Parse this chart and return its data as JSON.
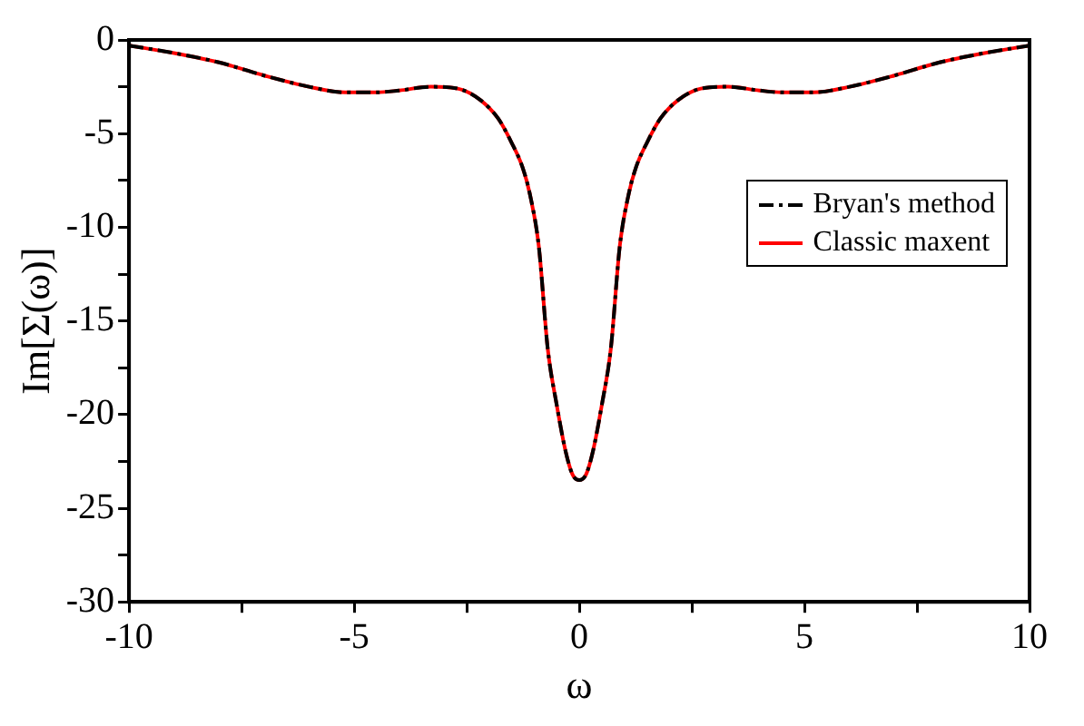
{
  "chart_data": {
    "type": "line",
    "xlabel": "ω",
    "ylabel": "Im[Σ(ω)]",
    "x": [
      -10,
      -9,
      -8,
      -7,
      -6,
      -5.2,
      -4.5,
      -4,
      -3.3,
      -2.7,
      -2.2,
      -1.8,
      -1.5,
      -1.26,
      -1.1,
      -0.9,
      -0.7,
      -0.5,
      -0.3,
      -0.15,
      0,
      0.15,
      0.3,
      0.5,
      0.7,
      0.9,
      1.1,
      1.26,
      1.5,
      1.8,
      2.2,
      2.7,
      3.3,
      4,
      4.5,
      5.2,
      6,
      7,
      8,
      9,
      10
    ],
    "series": [
      {
        "name": "Bryan's method",
        "color": "#000000",
        "line_style": "dashed",
        "values": [
          -0.3,
          -0.7,
          -1.2,
          -1.9,
          -2.5,
          -2.8,
          -2.8,
          -2.7,
          -2.5,
          -2.6,
          -3.2,
          -4.2,
          -5.5,
          -6.8,
          -8.2,
          -11,
          -16.5,
          -19.5,
          -22,
          -23.2,
          -23.5,
          -23.2,
          -22,
          -19.5,
          -16.5,
          -11,
          -8.2,
          -6.8,
          -5.5,
          -4.2,
          -3.2,
          -2.6,
          -2.5,
          -2.7,
          -2.8,
          -2.8,
          -2.5,
          -1.9,
          -1.2,
          -0.7,
          -0.3
        ]
      },
      {
        "name": "Classic maxent",
        "color": "#ff0000",
        "line_style": "solid",
        "values": [
          -0.3,
          -0.7,
          -1.2,
          -1.9,
          -2.5,
          -2.8,
          -2.8,
          -2.7,
          -2.5,
          -2.6,
          -3.2,
          -4.2,
          -5.5,
          -6.8,
          -8.2,
          -11,
          -16.5,
          -19.5,
          -22,
          -23.2,
          -23.5,
          -23.2,
          -22,
          -19.5,
          -16.5,
          -11,
          -8.2,
          -6.8,
          -5.5,
          -4.2,
          -3.2,
          -2.6,
          -2.5,
          -2.7,
          -2.8,
          -2.8,
          -2.5,
          -1.9,
          -1.2,
          -0.7,
          -0.3
        ]
      }
    ],
    "xlim": [
      -10,
      10
    ],
    "xticks": [
      -10,
      {
        "value": -7.5,
        "label": null
      },
      -5,
      {
        "value": -2.5,
        "label": null
      },
      0,
      {
        "value": 2.5,
        "label": null
      },
      5,
      {
        "value": 7.5,
        "label": null
      },
      10
    ],
    "ylim": [
      -30,
      0
    ],
    "yticks": [
      -30,
      {
        "value": -27.5,
        "label": null
      },
      -25,
      {
        "value": -22.5,
        "label": null
      },
      -20,
      {
        "value": -17.5,
        "label": null
      },
      -15,
      {
        "value": -12.5,
        "label": null
      },
      -10,
      {
        "value": -7.5,
        "label": null
      },
      -5,
      {
        "value": -2.5,
        "label": null
      },
      0
    ],
    "grid": false,
    "legend": "right",
    "marker": "none"
  }
}
